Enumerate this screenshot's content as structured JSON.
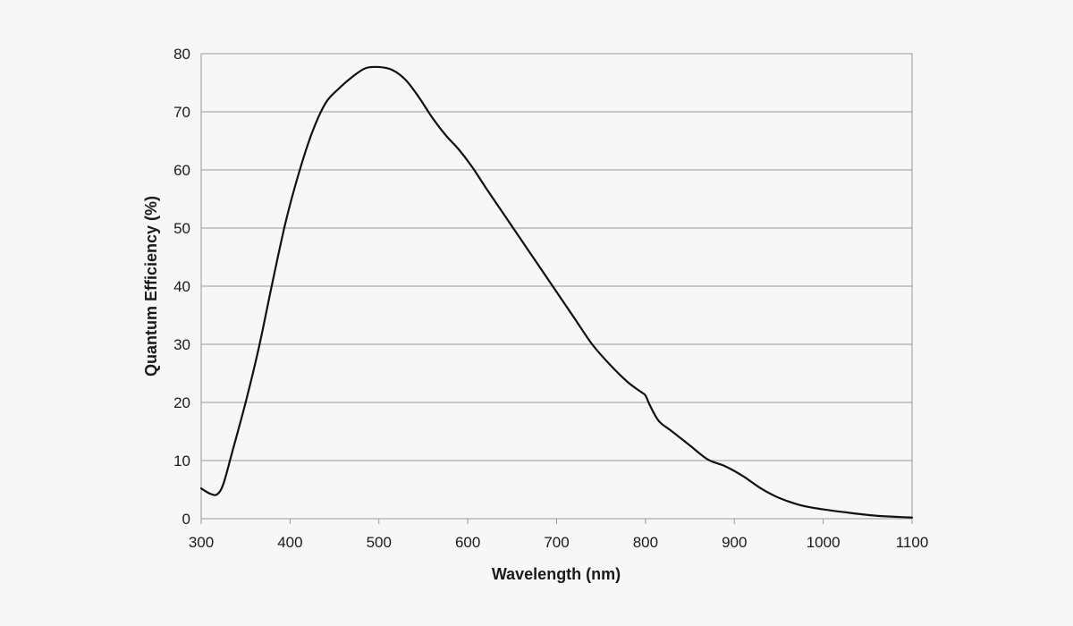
{
  "chart_data": {
    "type": "line",
    "title": "",
    "xlabel": "Wavelength (nm)",
    "ylabel": "Quantum Efficiency (%)",
    "xlim": [
      300,
      1100
    ],
    "ylim": [
      0,
      80
    ],
    "xticks": [
      300,
      400,
      500,
      600,
      700,
      800,
      900,
      1000,
      1100
    ],
    "yticks": [
      0,
      10,
      20,
      30,
      40,
      50,
      60,
      70,
      80
    ],
    "grid": "horizontal",
    "legend": "none",
    "line_color": "#111111",
    "grid_color": "#9a9a9a",
    "background_color": "#f7f7f7",
    "series": [
      {
        "x": [
          300,
          310,
          318,
          325,
          335,
          350,
          365,
          380,
          395,
          410,
          425,
          440,
          455,
          470,
          485,
          500,
          515,
          530,
          545,
          560,
          575,
          590,
          605,
          620,
          640,
          660,
          680,
          700,
          720,
          740,
          760,
          780,
          795,
          800,
          805,
          815,
          830,
          850,
          870,
          890,
          910,
          930,
          950,
          975,
          1000,
          1030,
          1060,
          1085,
          1100
        ],
        "y": [
          5.2,
          4.3,
          4.2,
          6,
          11.5,
          20,
          29.5,
          40.5,
          51,
          59.5,
          66.5,
          71.5,
          74,
          76,
          77.5,
          77.7,
          77.2,
          75.5,
          72.5,
          69,
          66,
          63.5,
          60.5,
          57,
          52.5,
          48,
          43.5,
          39,
          34.5,
          30,
          26.5,
          23.5,
          21.8,
          21.2,
          19.5,
          16.8,
          15,
          12.6,
          10.2,
          9,
          7.3,
          5.2,
          3.6,
          2.3,
          1.6,
          1,
          0.5,
          0.3,
          0.2
        ]
      }
    ]
  }
}
